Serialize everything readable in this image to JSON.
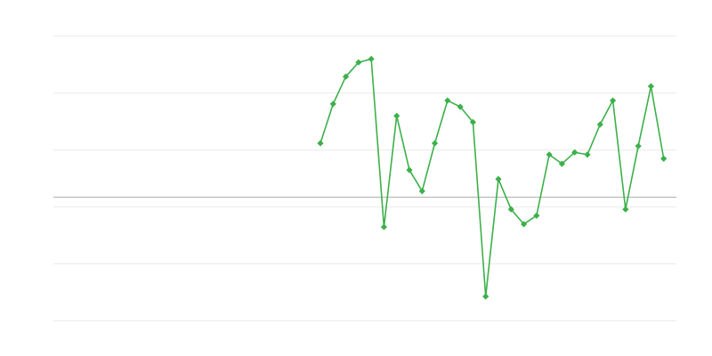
{
  "chart_data": {
    "type": "line",
    "title": "",
    "xlabel": "",
    "ylabel": "",
    "xlim": [
      0,
      49
    ],
    "ylim": [
      -2,
      3
    ],
    "grid": true,
    "legend": "none",
    "reference_line": 0.17,
    "series": [
      {
        "color": "#3cb04a",
        "marker": "diamond",
        "x": [
          21,
          22,
          23,
          24,
          25,
          26,
          27,
          28,
          29,
          30,
          31,
          32,
          33,
          34,
          35,
          36,
          37,
          38,
          39,
          40,
          41,
          42,
          43,
          44,
          45,
          46,
          47,
          48
        ],
        "values": [
          1.11,
          1.8,
          2.28,
          2.53,
          2.59,
          -0.36,
          1.59,
          0.64,
          0.27,
          1.11,
          1.86,
          1.75,
          1.48,
          -1.58,
          0.48,
          -0.05,
          -0.31,
          -0.16,
          0.91,
          0.75,
          0.95,
          0.91,
          1.44,
          1.86,
          -0.05,
          1.06,
          2.11,
          0.84
        ]
      }
    ],
    "colors": {
      "grid": "#ebebeb",
      "reference_line": "#aaaaaa"
    }
  }
}
